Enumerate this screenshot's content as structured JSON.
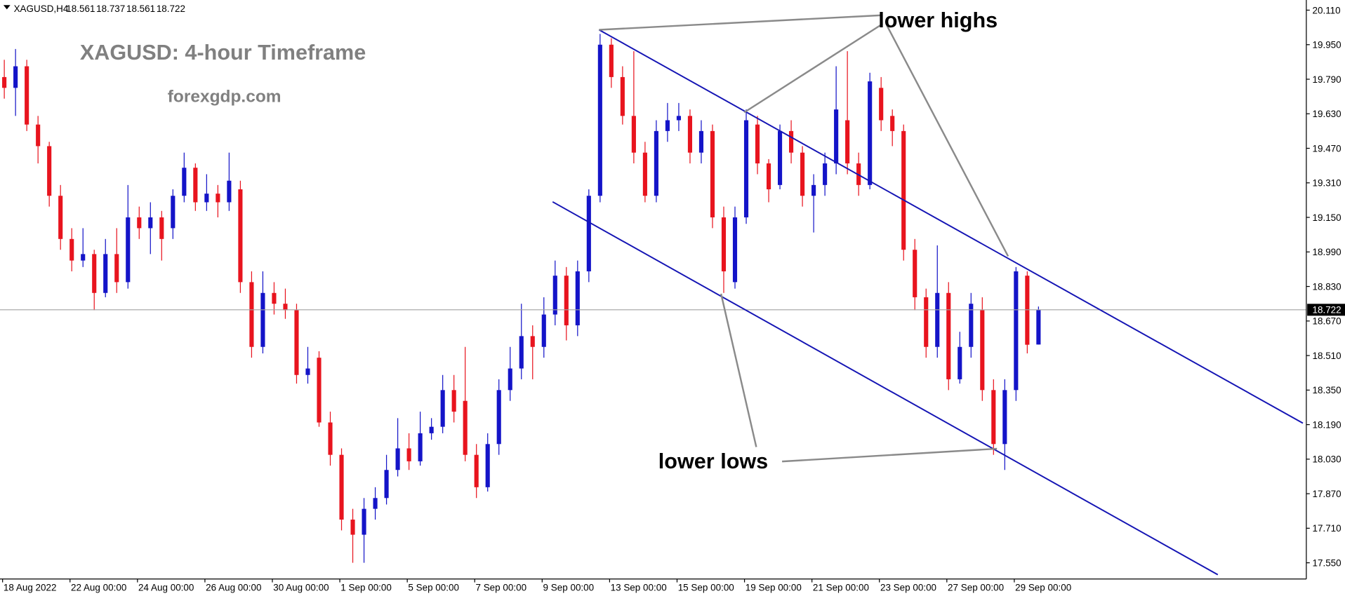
{
  "chart_data": {
    "type": "candlestick",
    "symbol": "XAGUSD,H4",
    "title": "XAGUSD: 4-hour Timeframe",
    "subtitle": "forexgdp.com",
    "annotations": [
      "lower highs",
      "lower lows"
    ],
    "up_color": "#1414c8",
    "down_color": "#e8141e",
    "categories": [
      "18 Aug 2022",
      null,
      null,
      null,
      null,
      null,
      "22 Aug 00:00",
      null,
      null,
      null,
      null,
      null,
      "24 Aug 00:00",
      null,
      null,
      null,
      null,
      null,
      "26 Aug 00:00",
      null,
      null,
      null,
      null,
      null,
      "30 Aug 00:00",
      null,
      null,
      null,
      null,
      null,
      "1 Sep 00:00",
      null,
      null,
      null,
      null,
      null,
      "5 Sep 00:00",
      null,
      null,
      null,
      null,
      null,
      "7 Sep 00:00",
      null,
      null,
      null,
      null,
      null,
      "9 Sep 00:00",
      null,
      null,
      null,
      null,
      null,
      "13 Sep 00:00",
      null,
      null,
      null,
      null,
      null,
      "15 Sep 00:00",
      null,
      null,
      null,
      null,
      null,
      "19 Sep 00:00",
      null,
      null,
      null,
      null,
      null,
      "21 Sep 00:00",
      null,
      null,
      null,
      null,
      null,
      "23 Sep 00:00",
      null,
      null,
      null,
      null,
      null,
      "27 Sep 00:00",
      null,
      null,
      null,
      null,
      null,
      "29 Sep 00:00",
      null,
      null
    ],
    "open": [
      19.8,
      19.75,
      19.85,
      19.58,
      19.48,
      19.25,
      19.05,
      18.95,
      18.98,
      18.8,
      18.98,
      18.85,
      19.15,
      19.1,
      19.15,
      19.1,
      19.25,
      19.38,
      19.22,
      19.26,
      19.22,
      19.28,
      18.85,
      18.55,
      18.8,
      18.75,
      18.72,
      18.42,
      18.5,
      18.2,
      18.05,
      17.75,
      17.68,
      17.8,
      17.85,
      17.98,
      18.08,
      18.02,
      18.15,
      18.18,
      18.35,
      18.3,
      18.05,
      17.9,
      18.1,
      18.35,
      18.45,
      18.6,
      18.55,
      18.7,
      18.88,
      18.65,
      18.9,
      19.25,
      19.95,
      19.8,
      19.62,
      19.45,
      19.25,
      19.55,
      19.6,
      19.62,
      19.45,
      19.55,
      19.15,
      18.85,
      19.15,
      19.58,
      19.4,
      19.3,
      19.55,
      19.45,
      19.25,
      19.3,
      19.4,
      19.6,
      19.4,
      19.3,
      19.75,
      19.62,
      19.55,
      19.0,
      18.78,
      18.55,
      18.8,
      18.4,
      18.55,
      18.72,
      18.35,
      18.1,
      18.35,
      18.88,
      18.561
    ],
    "high": [
      19.88,
      19.93,
      19.88,
      19.62,
      19.5,
      19.3,
      19.1,
      19.1,
      19.0,
      19.05,
      19.1,
      19.3,
      19.2,
      19.22,
      19.18,
      19.28,
      19.45,
      19.4,
      19.35,
      19.3,
      19.45,
      19.32,
      18.9,
      18.9,
      18.85,
      18.82,
      18.75,
      18.55,
      18.53,
      18.25,
      18.08,
      17.8,
      17.85,
      17.9,
      18.05,
      18.22,
      18.15,
      18.25,
      18.22,
      18.42,
      18.42,
      18.55,
      18.1,
      18.15,
      18.4,
      18.55,
      18.75,
      18.65,
      18.78,
      18.95,
      18.92,
      18.95,
      19.28,
      20.0,
      19.98,
      19.85,
      19.92,
      19.5,
      19.6,
      19.68,
      19.68,
      19.65,
      19.6,
      19.58,
      19.2,
      19.2,
      19.65,
      19.62,
      19.42,
      19.58,
      19.6,
      19.48,
      19.35,
      19.45,
      19.85,
      19.92,
      19.45,
      19.82,
      19.8,
      19.65,
      19.58,
      19.05,
      18.82,
      19.02,
      18.85,
      18.62,
      18.8,
      18.78,
      18.4,
      18.4,
      18.92,
      18.9,
      18.737
    ],
    "low": [
      19.7,
      19.62,
      19.55,
      19.4,
      19.2,
      19.0,
      18.9,
      18.92,
      18.72,
      18.78,
      18.8,
      18.82,
      19.05,
      18.98,
      18.95,
      19.05,
      19.22,
      19.18,
      19.18,
      19.15,
      19.18,
      18.8,
      18.5,
      18.52,
      18.7,
      18.68,
      18.38,
      18.38,
      18.18,
      18.0,
      17.7,
      17.55,
      17.55,
      17.75,
      17.82,
      17.95,
      17.98,
      18.0,
      18.12,
      18.15,
      18.2,
      18.02,
      17.85,
      17.88,
      18.05,
      18.3,
      18.4,
      18.4,
      18.5,
      18.65,
      18.58,
      18.6,
      18.85,
      19.22,
      19.75,
      19.58,
      19.4,
      19.22,
      19.22,
      19.5,
      19.55,
      19.4,
      19.4,
      19.1,
      18.8,
      18.82,
      19.12,
      19.35,
      19.22,
      19.28,
      19.4,
      19.2,
      19.08,
      19.25,
      19.35,
      19.35,
      19.25,
      19.28,
      19.55,
      19.48,
      18.95,
      18.72,
      18.5,
      18.5,
      18.35,
      18.38,
      18.5,
      18.3,
      18.05,
      17.98,
      18.3,
      18.52,
      18.561
    ],
    "close": [
      19.75,
      19.85,
      19.58,
      19.48,
      19.25,
      19.05,
      18.95,
      18.98,
      18.8,
      18.98,
      18.85,
      19.15,
      19.1,
      19.15,
      19.05,
      19.25,
      19.38,
      19.22,
      19.26,
      19.22,
      19.32,
      18.85,
      18.55,
      18.8,
      18.75,
      18.72,
      18.42,
      18.45,
      18.2,
      18.05,
      17.75,
      17.68,
      17.8,
      17.85,
      17.98,
      18.08,
      18.02,
      18.15,
      18.18,
      18.35,
      18.25,
      18.05,
      17.9,
      18.1,
      18.35,
      18.45,
      18.6,
      18.55,
      18.7,
      18.88,
      18.65,
      18.9,
      19.25,
      19.95,
      19.8,
      19.62,
      19.45,
      19.25,
      19.55,
      19.6,
      19.62,
      19.45,
      19.55,
      19.15,
      18.9,
      19.15,
      19.6,
      19.4,
      19.28,
      19.55,
      19.45,
      19.25,
      19.3,
      19.4,
      19.65,
      19.4,
      19.3,
      19.78,
      19.6,
      19.55,
      19.0,
      18.78,
      18.55,
      18.8,
      18.4,
      18.55,
      18.75,
      18.35,
      18.1,
      18.35,
      18.9,
      18.56,
      18.722
    ],
    "ylim": [
      17.475,
      20.157
    ],
    "yticks": [
      {
        "value": 20.11,
        "label": "20.110"
      },
      {
        "value": 19.95,
        "label": "19.950"
      },
      {
        "value": 19.79,
        "label": "19.790"
      },
      {
        "value": 19.63,
        "label": "19.630"
      },
      {
        "value": 19.47,
        "label": "19.470"
      },
      {
        "value": 19.31,
        "label": "19.310"
      },
      {
        "value": 19.15,
        "label": "19.150"
      },
      {
        "value": 18.99,
        "label": "18.990"
      },
      {
        "value": 18.83,
        "label": "18.830"
      },
      {
        "value": 18.67,
        "label": "18.670"
      },
      {
        "value": 18.51,
        "label": "18.510"
      },
      {
        "value": 18.35,
        "label": "18.350"
      },
      {
        "value": 18.19,
        "label": "18.190"
      },
      {
        "value": 18.03,
        "label": "18.030"
      },
      {
        "value": 17.87,
        "label": "17.870"
      },
      {
        "value": 17.71,
        "label": "17.710"
      },
      {
        "value": 17.55,
        "label": "17.550"
      }
    ]
  }
}
